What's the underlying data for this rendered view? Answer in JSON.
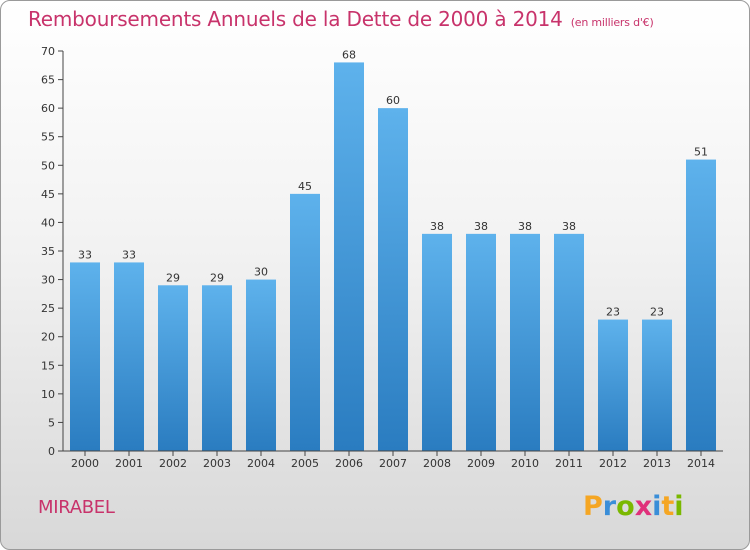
{
  "header": {
    "title": "Remboursements Annuels de la Dette de 2000 à 2014",
    "unit": "(en milliers d'€)"
  },
  "footer": {
    "commune": "MIRABEL",
    "logo_letters": [
      "P",
      "r",
      "o",
      "x",
      "i",
      "t",
      "i"
    ],
    "logo_colors": [
      "#f5a623",
      "#3a8ed8",
      "#7ab800",
      "#e0307a",
      "#3a8ed8",
      "#f5a623",
      "#7ab800"
    ]
  },
  "chart_data": {
    "type": "bar",
    "title": "Remboursements Annuels de la Dette de 2000 à 2014",
    "subtitle": "(en milliers d'€)",
    "categories": [
      "2000",
      "2001",
      "2002",
      "2003",
      "2004",
      "2005",
      "2006",
      "2007",
      "2008",
      "2009",
      "2010",
      "2011",
      "2012",
      "2013",
      "2014"
    ],
    "values": [
      33,
      33,
      29,
      29,
      30,
      45,
      68,
      60,
      38,
      38,
      38,
      38,
      23,
      23,
      51
    ],
    "ylim": [
      0,
      70
    ],
    "yticks": [
      0,
      5,
      10,
      15,
      20,
      25,
      30,
      35,
      40,
      45,
      50,
      55,
      60,
      65,
      70
    ],
    "grid": false,
    "colors": {
      "bar_top": "#5eb2ec",
      "bar_bottom": "#2a7cc0",
      "axis": "#444444",
      "text": "#333333"
    }
  }
}
